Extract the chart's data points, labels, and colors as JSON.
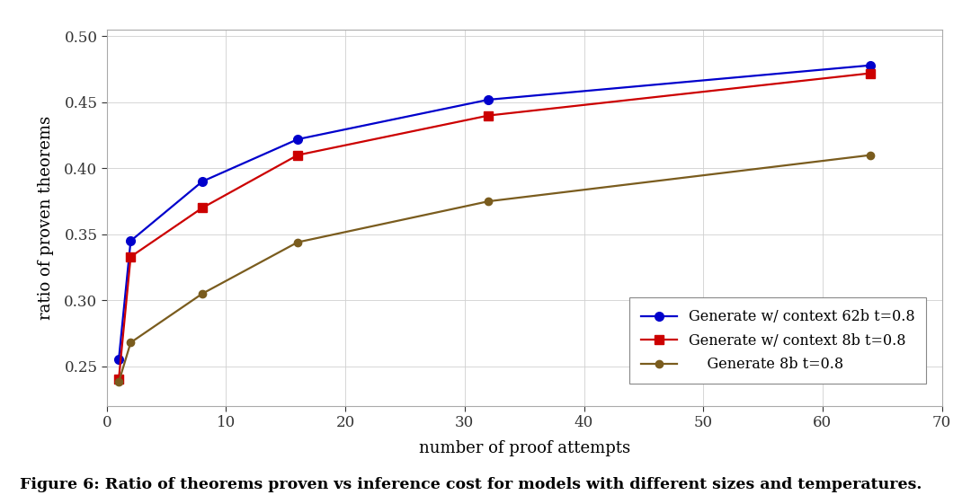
{
  "series": [
    {
      "label": "Generate w/ context 62b t=0.8",
      "x": [
        1,
        2,
        8,
        16,
        32,
        64
      ],
      "y": [
        0.255,
        0.345,
        0.39,
        0.422,
        0.452,
        0.478
      ],
      "color": "#0000cc",
      "marker": "o",
      "markersize": 7,
      "linewidth": 1.6
    },
    {
      "label": "Generate w/ context 8b t=0.8",
      "x": [
        1,
        2,
        8,
        16,
        32,
        64
      ],
      "y": [
        0.24,
        0.333,
        0.37,
        0.41,
        0.44,
        0.472
      ],
      "color": "#cc0000",
      "marker": "s",
      "markersize": 7,
      "linewidth": 1.6
    },
    {
      "label": "    Generate 8b t=0.8",
      "x": [
        1,
        2,
        8,
        16,
        32,
        64
      ],
      "y": [
        0.238,
        0.268,
        0.305,
        0.344,
        0.375,
        0.41
      ],
      "color": "#7a5c1e",
      "marker": "o",
      "markersize": 6,
      "linewidth": 1.6
    }
  ],
  "xlabel": "number of proof attempts",
  "ylabel": "ratio of proven theorems",
  "xlim": [
    0,
    70
  ],
  "ylim": [
    0.22,
    0.505
  ],
  "xticks": [
    0,
    10,
    20,
    30,
    40,
    50,
    60,
    70
  ],
  "yticks": [
    0.25,
    0.3,
    0.35,
    0.4,
    0.45,
    0.5
  ],
  "caption": "Figure 6: Ratio of theorems proven vs inference cost for models with different sizes and temperatures.",
  "background_color": "#ffffff",
  "grid_color": "#d0d0d0",
  "figsize": [
    10.8,
    5.51
  ],
  "dpi": 100
}
